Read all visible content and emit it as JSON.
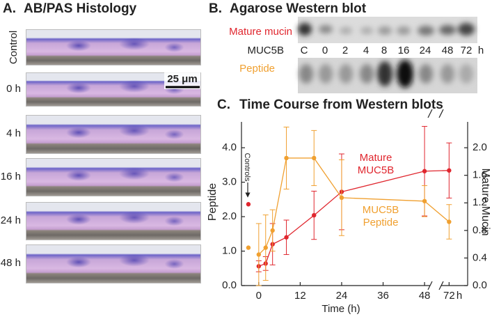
{
  "panel_a": {
    "label": "A.",
    "title": "AB/PAS Histology",
    "rows": [
      "Control",
      "0 h",
      "4 h",
      "16 h",
      "24 h",
      "48 h"
    ],
    "scale_bar": "25 μm"
  },
  "panel_b": {
    "label": "B.",
    "title": "Agarose Western blot",
    "top_band": "Mature mucin",
    "middle_label": "MUC5B",
    "bottom_band": "Peptide",
    "lanes": [
      "C",
      "0",
      "2",
      "4",
      "8",
      "16",
      "24",
      "48",
      "72"
    ],
    "lane_unit": "h"
  },
  "chart_data": {
    "type": "line",
    "label": "C.",
    "title": "Time Course from Western blots",
    "x_label": "Time (h)",
    "x_unit": "h",
    "y_label": "Peptide",
    "y2_label": "Mature Mucin",
    "x": [
      0,
      2,
      4,
      8,
      16,
      24,
      48,
      72
    ],
    "xlim": [
      -5,
      76
    ],
    "xbreak": [
      50,
      70
    ],
    "xticks": [
      0,
      12,
      24,
      36,
      48,
      72
    ],
    "ylim": [
      0,
      4.75
    ],
    "yticks": [
      {
        "value": 0,
        "label": "0.0"
      },
      {
        "value": 1,
        "label": "1.0"
      },
      {
        "value": 2,
        "label": "2.0"
      },
      {
        "value": 3,
        "label": "3.0"
      },
      {
        "value": 4,
        "label": "4.0"
      }
    ],
    "y2lim": [
      0,
      2.375
    ],
    "y2ticks": [
      {
        "value": 0,
        "label": "0.0"
      },
      0.4,
      0.8,
      1.2,
      1.6,
      {
        "value": 2,
        "label": "2.0"
      }
    ],
    "series": [
      {
        "name": "Mature MUC5B",
        "color": "#e0262e",
        "axis": "y2",
        "values": [
          0.28,
          0.32,
          0.6,
          0.7,
          1.02,
          1.36,
          1.66,
          1.67
        ],
        "errors": [
          0.08,
          0.1,
          0.3,
          0.25,
          0.35,
          0.55,
          0.65,
          0.4
        ]
      },
      {
        "name": "MUC5B Peptide",
        "color": "#f0a030",
        "values": [
          0.9,
          1.1,
          1.6,
          3.7,
          3.7,
          2.55,
          2.45,
          1.85
        ],
        "errors": [
          0.9,
          0.95,
          0.6,
          0.9,
          0.8,
          1.1,
          0.45,
          0.5
        ]
      }
    ],
    "controls": {
      "label": "Controls",
      "x": -3,
      "values": [
        1.18,
        1.1
      ]
    }
  }
}
